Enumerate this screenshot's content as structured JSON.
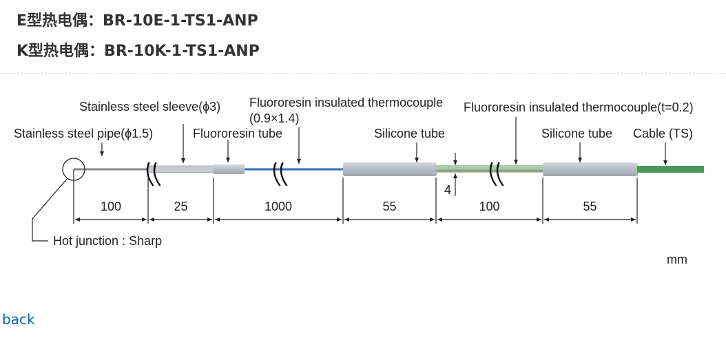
{
  "titles": [
    "E型热电偶：BR-10E-1-TS1-ANP",
    "K型热电偶：BR-10K-1-TS1-ANP"
  ],
  "diagram": {
    "labels": {
      "sleeve": "Stainless steel sleeve(ϕ3)",
      "insulated_tc": "Fluororesin insulated thermocouple",
      "insulated_tc_size": "(0.9×1.4)",
      "insulated_tc_t": "Fluororesin insulated thermocouple(t=0.2)",
      "pipe": "Stainless steel pipe(ϕ1.5)",
      "fluoro_tube": "Fluororesin tube",
      "silicone_tube_1": "Silicone tube",
      "silicone_tube_2": "Silicone tube",
      "cable": "Cable (TS)",
      "hot_junction": "Hot junction : Sharp",
      "unit": "mm",
      "diameter": "4"
    },
    "dimensions": [
      "100",
      "25",
      "1000",
      "55",
      "100",
      "55"
    ],
    "colors": {
      "blue_wire": "#2a6fc0",
      "green_cable": "#4a9a5a",
      "silicone": "#b9c0c8",
      "text": "#222222"
    }
  },
  "links": {
    "back": "back"
  }
}
